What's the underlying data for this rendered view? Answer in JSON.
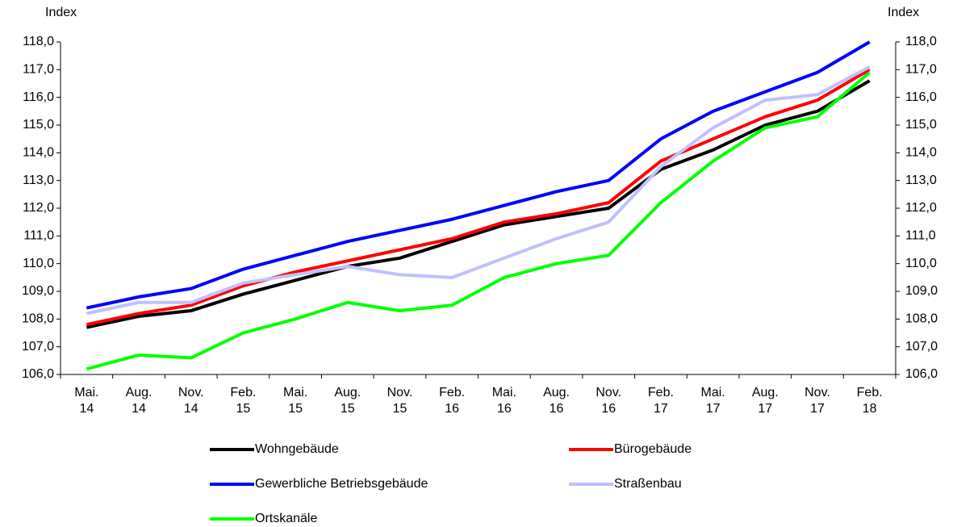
{
  "chart_data": {
    "type": "line",
    "y_label": "Index",
    "y2_label": "Index",
    "categories": [
      "Mai. 14",
      "Aug. 14",
      "Nov. 14",
      "Feb. 15",
      "Mai. 15",
      "Aug. 15",
      "Nov. 15",
      "Feb. 16",
      "Mai. 16",
      "Aug. 16",
      "Nov. 16",
      "Feb. 17",
      "Mai. 17",
      "Aug. 17",
      "Nov. 17",
      "Feb. 18"
    ],
    "series": [
      {
        "name": "Wohngebäude",
        "color": "#000000",
        "values": [
          107.7,
          108.1,
          108.3,
          108.9,
          109.4,
          109.9,
          110.2,
          110.8,
          111.4,
          111.7,
          112.0,
          113.4,
          114.1,
          115.0,
          115.5,
          116.6
        ]
      },
      {
        "name": "Bürogebäude",
        "color": "#ff0000",
        "values": [
          107.8,
          108.2,
          108.5,
          109.2,
          109.7,
          110.1,
          110.5,
          110.9,
          111.5,
          111.8,
          112.2,
          113.7,
          114.5,
          115.3,
          115.9,
          117.0
        ]
      },
      {
        "name": "Gewerbliche Betriebsgebäude",
        "color": "#0000ff",
        "values": [
          108.4,
          108.8,
          109.1,
          109.8,
          110.3,
          110.8,
          111.2,
          111.6,
          112.1,
          112.6,
          113.0,
          114.5,
          115.5,
          116.2,
          116.9,
          118.0
        ]
      },
      {
        "name": "Straßenbau",
        "color": "#c0c0ff",
        "values": [
          108.2,
          108.6,
          108.6,
          109.3,
          109.6,
          109.9,
          109.6,
          109.5,
          110.2,
          110.9,
          111.5,
          113.5,
          114.9,
          115.9,
          116.1,
          117.1
        ]
      },
      {
        "name": "Ortskanäle",
        "color": "#00ff00",
        "values": [
          106.2,
          106.7,
          106.6,
          107.5,
          108.0,
          108.6,
          108.3,
          108.5,
          109.5,
          110.0,
          110.3,
          112.2,
          113.7,
          114.9,
          115.3,
          116.9
        ]
      }
    ],
    "ylim": [
      106,
      118
    ],
    "yticks": [
      {
        "value": 106,
        "label": "106,0"
      },
      {
        "value": 107,
        "label": "107,0"
      },
      {
        "value": 108,
        "label": "108,0"
      },
      {
        "value": 109,
        "label": "109,0"
      },
      {
        "value": 110,
        "label": "110,0"
      },
      {
        "value": 111,
        "label": "111,0"
      },
      {
        "value": 112,
        "label": "112,0"
      },
      {
        "value": 113,
        "label": "113,0"
      },
      {
        "value": 114,
        "label": "114,0"
      },
      {
        "value": 115,
        "label": "115,0"
      },
      {
        "value": 116,
        "label": "116,0"
      },
      {
        "value": 117,
        "label": "117,0"
      },
      {
        "value": 118,
        "label": "118,0"
      }
    ],
    "y2lim": [
      106,
      118
    ],
    "y2ticks": [
      {
        "value": 106,
        "label": "106,0"
      },
      {
        "value": 107,
        "label": "107,0"
      },
      {
        "value": 108,
        "label": "108,0"
      },
      {
        "value": 109,
        "label": "109,0"
      },
      {
        "value": 110,
        "label": "110,0"
      },
      {
        "value": 111,
        "label": "111,0"
      },
      {
        "value": 112,
        "label": "112,0"
      },
      {
        "value": 113,
        "label": "113,0"
      },
      {
        "value": 114,
        "label": "114,0"
      },
      {
        "value": 115,
        "label": "115,0"
      },
      {
        "value": 116,
        "label": "116,0"
      },
      {
        "value": 117,
        "label": "117,0"
      },
      {
        "value": 118,
        "label": "118,0"
      }
    ],
    "grid": false,
    "legend": "bottom"
  }
}
